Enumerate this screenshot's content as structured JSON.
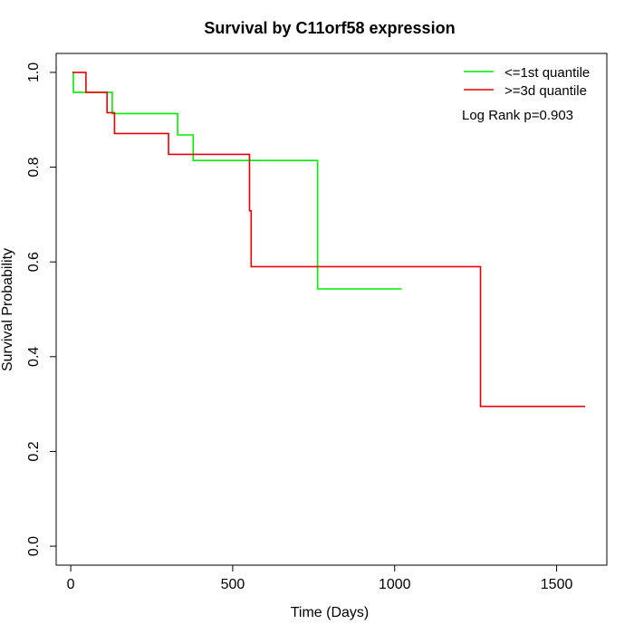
{
  "chart_data": {
    "type": "line",
    "title": "Survival by C11orf58 expression",
    "xlabel": "Time (Days)",
    "ylabel": "Survival Probability",
    "xlim": [
      -45,
      1655
    ],
    "ylim": [
      -0.04,
      1.04
    ],
    "xticks": [
      0,
      500,
      1000,
      1500
    ],
    "xtick_labels": [
      "0",
      "500",
      "1000",
      "1500"
    ],
    "yticks": [
      0.0,
      0.2,
      0.4,
      0.6,
      0.8,
      1.0
    ],
    "ytick_labels": [
      "0.0",
      "0.2",
      "0.4",
      "0.6",
      "0.8",
      "1.0"
    ],
    "grid": false,
    "legend_position": "top-right",
    "annotation": "Log Rank p=0.903",
    "series": [
      {
        "name": "<=1st quantile",
        "color": "#00ee00",
        "step_points": [
          [
            5,
            1.0
          ],
          [
            8,
            1.0
          ],
          [
            8,
            0.958
          ],
          [
            128,
            0.958
          ],
          [
            128,
            0.913
          ],
          [
            330,
            0.913
          ],
          [
            330,
            0.868
          ],
          [
            378,
            0.868
          ],
          [
            378,
            0.814
          ],
          [
            762,
            0.814
          ],
          [
            762,
            0.543
          ],
          [
            1022,
            0.543
          ]
        ]
      },
      {
        "name": ">=3d quantile",
        "color": "#ee0000",
        "step_points": [
          [
            5,
            1.0
          ],
          [
            47,
            1.0
          ],
          [
            47,
            0.958
          ],
          [
            112,
            0.958
          ],
          [
            112,
            0.915
          ],
          [
            135,
            0.915
          ],
          [
            135,
            0.871
          ],
          [
            302,
            0.871
          ],
          [
            302,
            0.827
          ],
          [
            552,
            0.827
          ],
          [
            552,
            0.708
          ],
          [
            557,
            0.708
          ],
          [
            557,
            0.59
          ],
          [
            1265,
            0.59
          ],
          [
            1265,
            0.295
          ],
          [
            1588,
            0.295
          ]
        ]
      }
    ]
  }
}
